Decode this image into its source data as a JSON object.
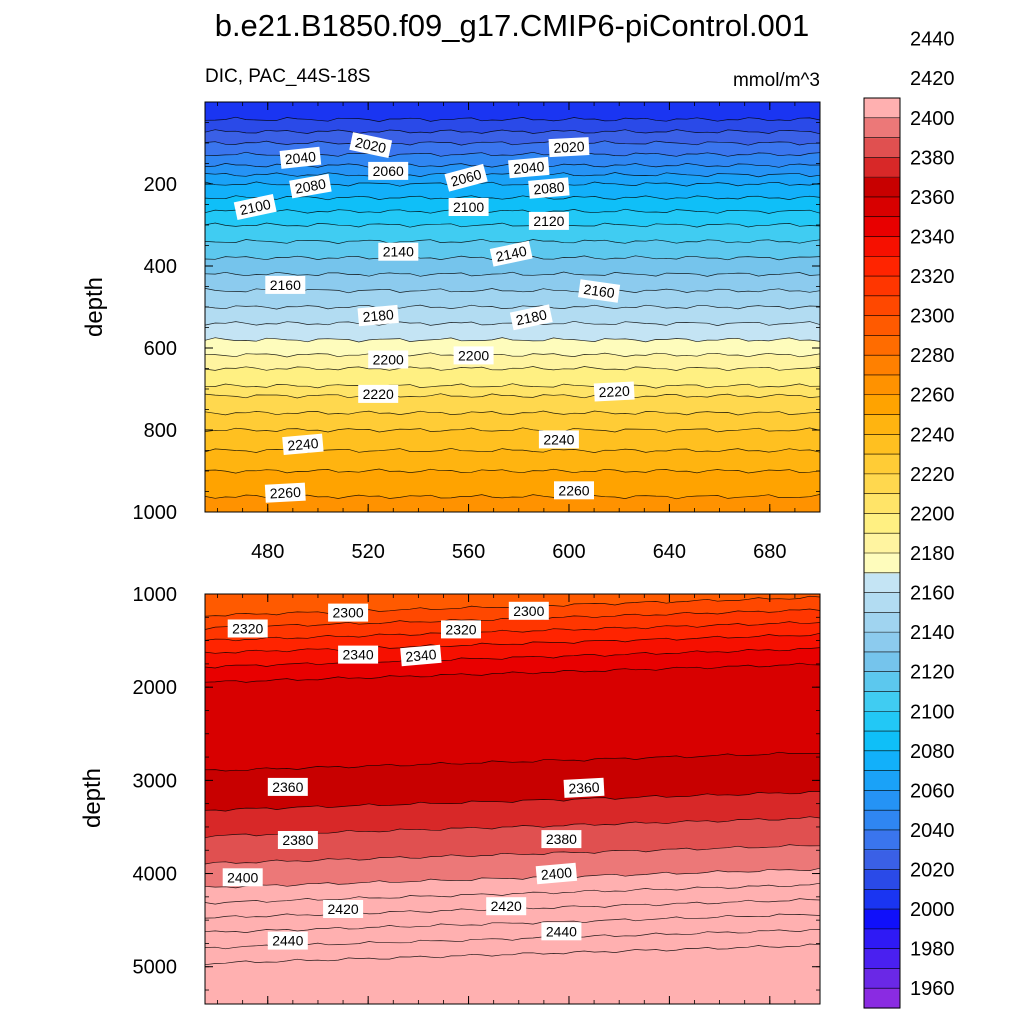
{
  "chart_data": {
    "type": "contour",
    "title": "b.e21.B1850.f09_g17.CMIP6-piControl.001",
    "variable_label": "DIC, PAC_44S-18S",
    "units_label": "mmol/m^3",
    "colorbar": {
      "levels": [
        1950,
        1960,
        1970,
        1980,
        1990,
        2000,
        2010,
        2020,
        2030,
        2040,
        2050,
        2060,
        2070,
        2080,
        2090,
        2100,
        2110,
        2120,
        2130,
        2140,
        2150,
        2160,
        2170,
        2180,
        2190,
        2200,
        2210,
        2220,
        2230,
        2240,
        2250,
        2260,
        2270,
        2280,
        2290,
        2300,
        2310,
        2320,
        2330,
        2340,
        2350,
        2360,
        2370,
        2380,
        2390,
        2400,
        2410,
        2420,
        2430,
        2440,
        2450
      ],
      "tick_labels": [
        "1960",
        "1980",
        "2000",
        "2020",
        "2040",
        "2060",
        "2080",
        "2100",
        "2120",
        "2140",
        "2160",
        "2180",
        "2200",
        "2220",
        "2240",
        "2260",
        "2280",
        "2300",
        "2320",
        "2340",
        "2360",
        "2380",
        "2400",
        "2420",
        "2440"
      ],
      "colors": [
        "#8a2be2",
        "#6a28e6",
        "#4a20f0",
        "#2f1af5",
        "#1010fa",
        "#1a35f2",
        "#2a4ae8",
        "#3a60e6",
        "#3a75ee",
        "#2f86f2",
        "#2593f5",
        "#1aa2f8",
        "#12b0fa",
        "#0fbff8",
        "#22c8f6",
        "#40ccf2",
        "#5cc8ee",
        "#75c4ec",
        "#8ccbee",
        "#a0d4f0",
        "#b2dcf2",
        "#c4e4f4",
        "#fefcbc",
        "#fff4a0",
        "#fff082",
        "#ffe468",
        "#ffd84e",
        "#ffcc36",
        "#ffc020",
        "#ffb410",
        "#ffa300",
        "#ff9200",
        "#ff8000",
        "#ff6c00",
        "#ff5a00",
        "#ff4800",
        "#ff3600",
        "#ff2400",
        "#f61000",
        "#e80000",
        "#d80000",
        "#c80000",
        "#d82828",
        "#e05050",
        "#ec7878",
        "#ffb0b0"
      ]
    },
    "panels": [
      {
        "name": "upper",
        "ylabel": "depth",
        "ylim": [
          0,
          1000
        ],
        "yticks": [
          200,
          400,
          600,
          800,
          1000
        ],
        "ytick_labels": [
          "200",
          "400",
          "600",
          "800",
          "1000"
        ],
        "xlim": [
          455,
          700
        ],
        "xticks": [
          480,
          520,
          560,
          600,
          640,
          680
        ],
        "xtick_labels": [
          "480",
          "520",
          "560",
          "600",
          "640",
          "680"
        ],
        "profile_depths": [
          5,
          50,
          100,
          150,
          200,
          300,
          400,
          500,
          600,
          650,
          690,
          700,
          800,
          900,
          1000
        ],
        "profile_values": [
          2000,
          2012,
          2030,
          2048,
          2070,
          2100,
          2125,
          2150,
          2175,
          2190,
          2198,
          2206,
          2230,
          2250,
          2266
        ],
        "contour_labels": [
          {
            "text": "2020",
            "x": 521,
            "y": 105,
            "rot": 12
          },
          {
            "text": "2020",
            "x": 600,
            "y": 110,
            "rot": -3
          },
          {
            "text": "2040",
            "x": 493,
            "y": 136,
            "rot": -6
          },
          {
            "text": "2040",
            "x": 584,
            "y": 160,
            "rot": -5
          },
          {
            "text": "2060",
            "x": 528,
            "y": 168,
            "rot": 0
          },
          {
            "text": "2060",
            "x": 559,
            "y": 185,
            "rot": -15
          },
          {
            "text": "2080",
            "x": 497,
            "y": 205,
            "rot": -10
          },
          {
            "text": "2080",
            "x": 592,
            "y": 210,
            "rot": -5
          },
          {
            "text": "2100",
            "x": 475,
            "y": 256,
            "rot": -12
          },
          {
            "text": "2100",
            "x": 560,
            "y": 256,
            "rot": 0
          },
          {
            "text": "2120",
            "x": 592,
            "y": 290,
            "rot": 0
          },
          {
            "text": "2140",
            "x": 532,
            "y": 365,
            "rot": 0
          },
          {
            "text": "2140",
            "x": 577,
            "y": 370,
            "rot": -12
          },
          {
            "text": "2160",
            "x": 487,
            "y": 446,
            "rot": 0
          },
          {
            "text": "2160",
            "x": 612,
            "y": 461,
            "rot": 8
          },
          {
            "text": "2180",
            "x": 524,
            "y": 521,
            "rot": -5
          },
          {
            "text": "2180",
            "x": 585,
            "y": 525,
            "rot": -12
          },
          {
            "text": "2200",
            "x": 528,
            "y": 628,
            "rot": 0
          },
          {
            "text": "2200",
            "x": 562,
            "y": 618,
            "rot": 0
          },
          {
            "text": "2220",
            "x": 524,
            "y": 712,
            "rot": 0
          },
          {
            "text": "2220",
            "x": 618,
            "y": 706,
            "rot": -3
          },
          {
            "text": "2240",
            "x": 494,
            "y": 835,
            "rot": -5
          },
          {
            "text": "2240",
            "x": 596,
            "y": 823,
            "rot": 0
          },
          {
            "text": "2260",
            "x": 487,
            "y": 953,
            "rot": -3
          },
          {
            "text": "2260",
            "x": 602,
            "y": 947,
            "rot": 0
          }
        ]
      },
      {
        "name": "lower",
        "ylabel": "depth",
        "ylim": [
          1000,
          5400
        ],
        "yticks": [
          1000,
          2000,
          3000,
          4000,
          5000
        ],
        "ytick_labels": [
          "1000",
          "2000",
          "3000",
          "4000",
          "5000"
        ],
        "xlim": [
          455,
          700
        ],
        "profile_depths": [
          1000,
          1200,
          1400,
          1600,
          1850,
          2000,
          3000,
          3500,
          4000,
          4300,
          4500,
          4700,
          4900,
          5400
        ],
        "profile_values": [
          2290,
          2305,
          2320,
          2335,
          2350,
          2352,
          2362,
          2380,
          2397,
          2415,
          2428,
          2440,
          2452,
          2460
        ],
        "slope_depth_per_x": -0.8,
        "contour_labels": [
          {
            "text": "2300",
            "x": 512,
            "y": 1200,
            "rot": 0
          },
          {
            "text": "2300",
            "x": 584,
            "y": 1180,
            "rot": 0
          },
          {
            "text": "2320",
            "x": 472,
            "y": 1370,
            "rot": 0
          },
          {
            "text": "2320",
            "x": 557,
            "y": 1380,
            "rot": 0
          },
          {
            "text": "2340",
            "x": 516,
            "y": 1650,
            "rot": 0
          },
          {
            "text": "2340",
            "x": 541,
            "y": 1660,
            "rot": -5
          },
          {
            "text": "2360",
            "x": 488,
            "y": 3070,
            "rot": 0
          },
          {
            "text": "2360",
            "x": 606,
            "y": 3080,
            "rot": -3
          },
          {
            "text": "2380",
            "x": 492,
            "y": 3640,
            "rot": 0
          },
          {
            "text": "2380",
            "x": 597,
            "y": 3630,
            "rot": 0
          },
          {
            "text": "2400",
            "x": 470,
            "y": 4040,
            "rot": 0
          },
          {
            "text": "2400",
            "x": 595,
            "y": 4000,
            "rot": -5
          },
          {
            "text": "2420",
            "x": 510,
            "y": 4380,
            "rot": 0
          },
          {
            "text": "2420",
            "x": 575,
            "y": 4350,
            "rot": 0
          },
          {
            "text": "2440",
            "x": 488,
            "y": 4720,
            "rot": 0
          },
          {
            "text": "2440",
            "x": 597,
            "y": 4620,
            "rot": 0
          }
        ]
      }
    ]
  }
}
